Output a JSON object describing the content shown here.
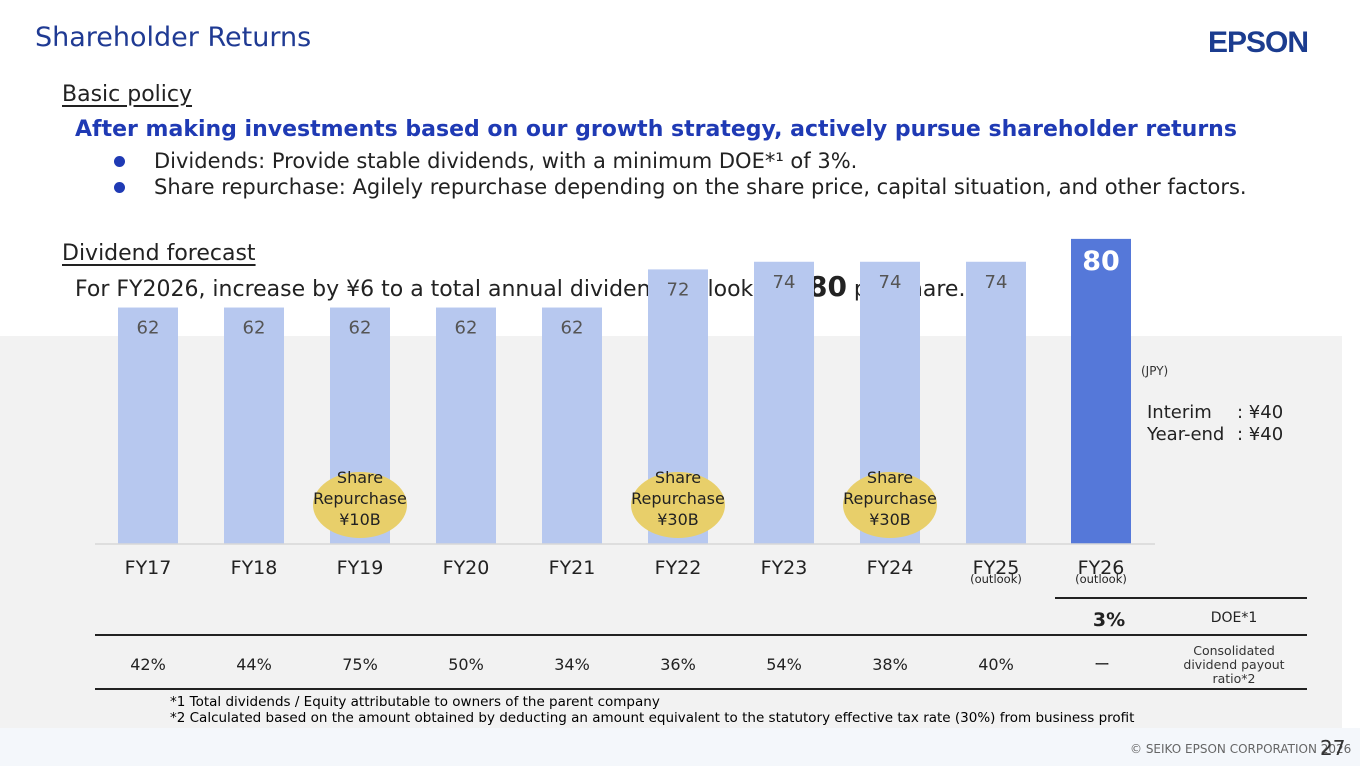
{
  "header": {
    "title": "Shareholder Returns",
    "logo_text": "EPSON"
  },
  "basic_policy": {
    "heading": "Basic policy",
    "statement": "After making investments based on our growth strategy, actively pursue shareholder returns",
    "bullets": [
      "Dividends: Provide stable dividends, with a minimum DOE*¹ of 3%.",
      "Share repurchase:  Agilely repurchase depending on the share price, capital situation, and other factors."
    ]
  },
  "dividend_forecast": {
    "heading": "Dividend forecast",
    "text_before": "For FY2026, increase by ¥6 to a total annual dividend outlook of ",
    "highlight": "¥80",
    "text_after": " per share."
  },
  "chart_data": {
    "type": "bar",
    "unit_label": "(JPY)",
    "categories": [
      "FY17",
      "FY18",
      "FY19",
      "FY20",
      "FY21",
      "FY22",
      "FY23",
      "FY24",
      "FY25",
      "FY26"
    ],
    "category_sublabels": [
      "",
      "",
      "",
      "",
      "",
      "",
      "",
      "",
      "(outlook)",
      "(outlook)"
    ],
    "values": [
      62,
      62,
      62,
      62,
      62,
      72,
      74,
      74,
      74,
      80
    ],
    "highlight_index": 9,
    "ylim": [
      0,
      86
    ],
    "colors": {
      "bar": "#b7c8ef",
      "highlight": "#5578d9",
      "label": "#555555",
      "highlight_label": "#ffffff",
      "bubble": "#e8cf6a"
    },
    "annotations": [
      {
        "index": 2,
        "lines": [
          "Share",
          "Repurchase",
          "¥10B"
        ]
      },
      {
        "index": 5,
        "lines": [
          "Share",
          "Repurchase",
          "¥30B"
        ]
      },
      {
        "index": 7,
        "lines": [
          "Share",
          "Repurchase",
          "¥30B"
        ]
      }
    ],
    "fy26_breakdown": [
      {
        "label": "Interim",
        "value": ": ¥40"
      },
      {
        "label": "Year-end",
        "value": ": ¥40"
      }
    ]
  },
  "table": {
    "doe_value": "3%",
    "doe_label": "DOE*1",
    "payout_values": [
      "42%",
      "44%",
      "75%",
      "50%",
      "34%",
      "36%",
      "54%",
      "38%",
      "40%",
      "ー"
    ],
    "payout_label": [
      "Consolidated",
      "dividend payout",
      "ratio*2"
    ]
  },
  "notes": [
    "*1 Total dividends / Equity attributable to owners of the parent company",
    "*2 Calculated based on the amount obtained by deducting an amount equivalent to the statutory effective tax rate (30%) from business profit"
  ],
  "footer": {
    "copyright": "© SEIKO EPSON CORPORATION 2026",
    "page": "27"
  }
}
